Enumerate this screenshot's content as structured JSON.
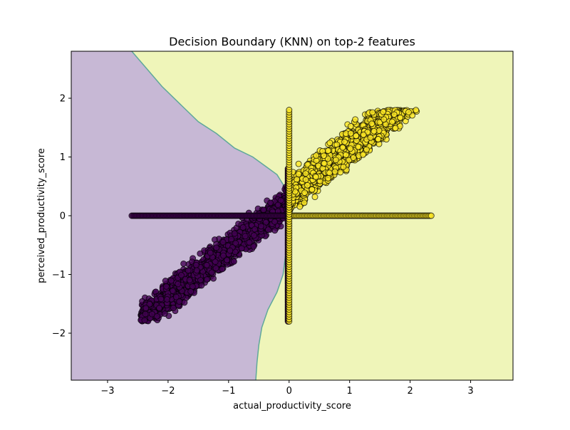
{
  "chart_data": {
    "type": "scatter",
    "title": "Decision Boundary (KNN) on top-2 features",
    "xlabel": "actual_productivity_score",
    "ylabel": "perceived_productivity_score",
    "xlim": [
      -3.6,
      3.7
    ],
    "ylim": [
      -2.8,
      2.8
    ],
    "x_ticks": [
      -3,
      -2,
      -1,
      0,
      1,
      2,
      3
    ],
    "x_tick_labels": [
      "−3",
      "−2",
      "−1",
      "0",
      "1",
      "2",
      "3"
    ],
    "y_ticks": [
      -2,
      -1,
      0,
      1,
      2
    ],
    "y_tick_labels": [
      "−2",
      "−1",
      "0",
      "1",
      "2"
    ],
    "grid": false,
    "legend": "none",
    "regions": [
      {
        "class": 0,
        "color": "#c7b8d5"
      },
      {
        "class": 1,
        "color": "#eff5b9"
      }
    ],
    "boundary_color": "#5fa89a",
    "decision_boundary": [
      [
        -2.6,
        2.8
      ],
      [
        -2.35,
        2.5
      ],
      [
        -2.1,
        2.2
      ],
      [
        -1.8,
        1.9
      ],
      [
        -1.5,
        1.6
      ],
      [
        -1.2,
        1.4
      ],
      [
        -0.9,
        1.15
      ],
      [
        -0.6,
        1.0
      ],
      [
        -0.4,
        0.85
      ],
      [
        -0.2,
        0.7
      ],
      [
        -0.08,
        0.5
      ],
      [
        -0.05,
        0.2
      ],
      [
        -0.04,
        -0.2
      ],
      [
        -0.05,
        -0.6
      ],
      [
        -0.1,
        -1.0
      ],
      [
        -0.2,
        -1.3
      ],
      [
        -0.35,
        -1.6
      ],
      [
        -0.45,
        -1.9
      ],
      [
        -0.5,
        -2.2
      ],
      [
        -0.53,
        -2.5
      ],
      [
        -0.55,
        -2.8
      ]
    ],
    "series": [
      {
        "class": 0,
        "color": "#440154",
        "band_center": {
          "slope": 0.82,
          "intercept": 0.25
        },
        "band_halfwidth": 0.45,
        "x_range": [
          -2.45,
          0.0
        ],
        "y_range": [
          -1.8,
          0.8
        ],
        "horizontal_line": {
          "y": 0.0,
          "x_range": [
            -2.6,
            0.0
          ]
        },
        "vertical_line": {
          "x": 0.0,
          "y_range": [
            -1.8,
            0.8
          ]
        }
      },
      {
        "class": 1,
        "color": "#fde725",
        "band_center": {
          "slope": 0.82,
          "intercept": 0.35
        },
        "band_halfwidth": 0.5,
        "x_range": [
          0.0,
          2.7
        ],
        "y_range": [
          -0.65,
          1.8
        ],
        "horizontal_line": {
          "y": 0.0,
          "x_range": [
            0.0,
            2.35
          ]
        },
        "vertical_line": {
          "x": 0.0,
          "y_range": [
            -1.8,
            1.8
          ]
        }
      }
    ]
  }
}
